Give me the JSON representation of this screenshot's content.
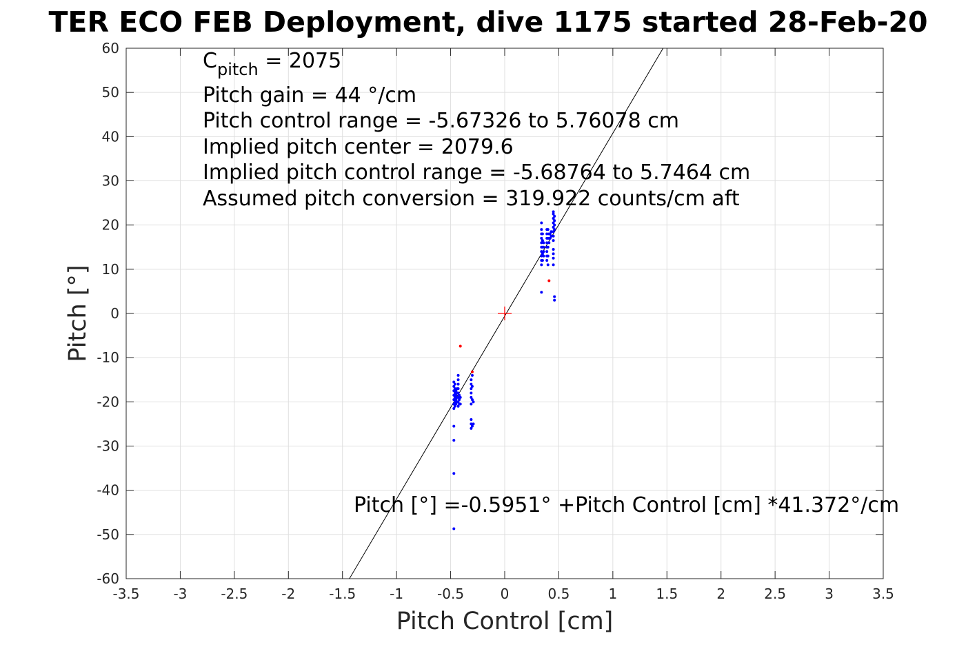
{
  "chart_data": {
    "type": "scatter",
    "title": "TER ECO FEB Deployment, dive 1175 started 28-Feb-20",
    "xlabel": "Pitch Control [cm]",
    "ylabel": "Pitch [°]",
    "xlim": [
      -3.5,
      3.5
    ],
    "ylim": [
      -60,
      60
    ],
    "grid": true,
    "xticks": [
      -3.5,
      -3,
      -2.5,
      -2,
      -1.5,
      -1,
      -0.5,
      0,
      0.5,
      1,
      1.5,
      2,
      2.5,
      3,
      3.5
    ],
    "yticks": [
      -60,
      -50,
      -40,
      -30,
      -20,
      -10,
      0,
      10,
      20,
      30,
      40,
      50,
      60
    ],
    "xtick_labels": [
      "-3.5",
      "-3",
      "-2.5",
      "-2",
      "-1.5",
      "-1",
      "-0.5",
      "0",
      "0.5",
      "1",
      "1.5",
      "2",
      "2.5",
      "3",
      "3.5"
    ],
    "ytick_labels": [
      "-60",
      "-50",
      "-40",
      "-30",
      "-20",
      "-10",
      "0",
      "10",
      "20",
      "30",
      "40",
      "50",
      "60"
    ],
    "annotations": {
      "cpitch_main": "C",
      "cpitch_sub": "pitch",
      "cpitch_value": " = 2075",
      "pitch_gain": "Pitch gain = 44 °/cm",
      "control_range": "Pitch control range = -5.67326 to 5.76078 cm",
      "implied_center": "Implied pitch center = 2079.6",
      "implied_range": "Implied pitch control range = -5.68764 to 5.7464 cm",
      "conversion": "Assumed pitch conversion = 319.922 counts/cm aft",
      "fit_equation": "Pitch [°] =-0.5951° +Pitch Control [cm] *41.372°/cm"
    },
    "fit_line": {
      "intercept": -0.5951,
      "slope": 41.372,
      "color": "#000000"
    },
    "center_marker": {
      "x": 0,
      "y": 0,
      "color": "#ff0000"
    },
    "series": [
      {
        "color": "#0000ff",
        "points": [
          [
            -0.47,
            -15.5
          ],
          [
            -0.47,
            -16.5
          ],
          [
            -0.47,
            -17.5
          ],
          [
            -0.47,
            -18.5
          ],
          [
            -0.47,
            -19.5
          ],
          [
            -0.47,
            -20.5
          ],
          [
            -0.47,
            -21.5
          ],
          [
            -0.46,
            -16
          ],
          [
            -0.46,
            -17
          ],
          [
            -0.46,
            -18
          ],
          [
            -0.46,
            -19
          ],
          [
            -0.46,
            -20
          ],
          [
            -0.46,
            -21
          ],
          [
            -0.45,
            -17.5
          ],
          [
            -0.45,
            -18.5
          ],
          [
            -0.45,
            -19.5
          ],
          [
            -0.45,
            -20.5
          ],
          [
            -0.44,
            -17
          ],
          [
            -0.44,
            -18
          ],
          [
            -0.44,
            -19
          ],
          [
            -0.44,
            -20
          ],
          [
            -0.43,
            -14
          ],
          [
            -0.43,
            -15
          ],
          [
            -0.43,
            -16
          ],
          [
            -0.43,
            -17
          ],
          [
            -0.43,
            -18
          ],
          [
            -0.43,
            -19
          ],
          [
            -0.43,
            -20
          ],
          [
            -0.43,
            -21
          ],
          [
            -0.42,
            -18.5
          ],
          [
            -0.42,
            -19.5
          ],
          [
            -0.42,
            -20.5
          ],
          [
            -0.41,
            -19
          ],
          [
            -0.41,
            -20.5
          ],
          [
            -0.47,
            -25.5
          ],
          [
            -0.47,
            -28.7
          ],
          [
            -0.47,
            -36.2
          ],
          [
            -0.47,
            -48.7
          ],
          [
            -0.31,
            -15
          ],
          [
            -0.31,
            -16
          ],
          [
            -0.31,
            -17
          ],
          [
            -0.31,
            -18
          ],
          [
            -0.31,
            -19
          ],
          [
            -0.31,
            -20.5
          ],
          [
            -0.3,
            -14
          ],
          [
            -0.3,
            -16.5
          ],
          [
            -0.3,
            -19.5
          ],
          [
            -0.29,
            -20
          ],
          [
            -0.31,
            -24
          ],
          [
            -0.31,
            -25
          ],
          [
            -0.31,
            -26
          ],
          [
            -0.3,
            -25.5
          ],
          [
            -0.29,
            -25
          ],
          [
            0.34,
            11
          ],
          [
            0.34,
            12
          ],
          [
            0.34,
            13
          ],
          [
            0.34,
            14
          ],
          [
            0.34,
            15
          ],
          [
            0.34,
            16
          ],
          [
            0.34,
            17
          ],
          [
            0.34,
            18
          ],
          [
            0.34,
            19
          ],
          [
            0.34,
            20.5
          ],
          [
            0.35,
            12
          ],
          [
            0.35,
            13.5
          ],
          [
            0.35,
            15
          ],
          [
            0.35,
            16.5
          ],
          [
            0.35,
            18
          ],
          [
            0.36,
            13
          ],
          [
            0.36,
            14
          ],
          [
            0.36,
            15
          ],
          [
            0.36,
            16
          ],
          [
            0.34,
            4.8
          ],
          [
            0.39,
            12
          ],
          [
            0.39,
            13
          ],
          [
            0.39,
            14
          ],
          [
            0.39,
            15
          ],
          [
            0.39,
            16
          ],
          [
            0.39,
            17
          ],
          [
            0.39,
            18
          ],
          [
            0.39,
            19
          ],
          [
            0.4,
            11
          ],
          [
            0.4,
            13
          ],
          [
            0.4,
            15
          ],
          [
            0.4,
            17
          ],
          [
            0.4,
            19
          ],
          [
            0.41,
            16
          ],
          [
            0.41,
            17
          ],
          [
            0.41,
            18
          ],
          [
            0.42,
            17
          ],
          [
            0.42,
            18
          ],
          [
            0.43,
            17.5
          ],
          [
            0.43,
            18.5
          ],
          [
            0.45,
            11
          ],
          [
            0.45,
            12.5
          ],
          [
            0.45,
            13.5
          ],
          [
            0.45,
            14.5
          ],
          [
            0.45,
            16.5
          ],
          [
            0.45,
            17.5
          ],
          [
            0.45,
            18.5
          ],
          [
            0.45,
            19.5
          ],
          [
            0.45,
            20.5
          ],
          [
            0.45,
            21.5
          ],
          [
            0.45,
            22.5
          ],
          [
            0.45,
            23
          ],
          [
            0.46,
            19
          ],
          [
            0.46,
            20
          ],
          [
            0.46,
            21
          ],
          [
            0.46,
            22
          ],
          [
            0.46,
            3
          ],
          [
            0.46,
            3.8
          ]
        ]
      },
      {
        "color": "#ff0000",
        "points": [
          [
            -0.41,
            -7.4
          ],
          [
            -0.3,
            -13.2
          ],
          [
            0.41,
            7.4
          ]
        ]
      }
    ]
  }
}
